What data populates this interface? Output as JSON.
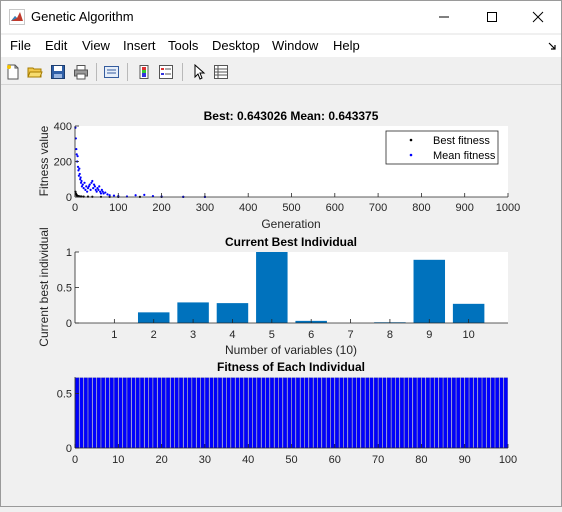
{
  "window": {
    "title": "Genetic Algorithm"
  },
  "menu": [
    "File",
    "Edit",
    "View",
    "Insert",
    "Tools",
    "Desktop",
    "Window",
    "Help"
  ],
  "colors": {
    "bar": "#0072bd",
    "best_marker": "#000000",
    "mean_marker": "#0000ff",
    "fitness_bar": "#0000ff"
  },
  "chart_data": [
    {
      "type": "scatter",
      "title": "Best: 0.643026 Mean: 0.643375",
      "xlabel": "Generation",
      "ylabel": "Fitness value",
      "xlim": [
        0,
        1000
      ],
      "ylim": [
        0,
        400
      ],
      "xticks": [
        0,
        100,
        200,
        300,
        400,
        500,
        600,
        700,
        800,
        900,
        1000
      ],
      "yticks": [
        0,
        200,
        400
      ],
      "legend": {
        "position": "top-right",
        "entries": [
          "Best fitness",
          "Mean fitness"
        ]
      },
      "series": [
        {
          "name": "Best fitness",
          "x": [
            1,
            2,
            3,
            4,
            5,
            6,
            8,
            10,
            12,
            15,
            20,
            30,
            40,
            60,
            80,
            100,
            150,
            200,
            250,
            300
          ],
          "y": [
            30,
            20,
            15,
            10,
            8,
            6,
            5,
            4,
            3,
            3,
            2,
            2,
            1.5,
            1.2,
            1,
            0.9,
            0.8,
            0.7,
            0.66,
            0.643
          ]
        },
        {
          "name": "Mean fitness",
          "x": [
            1,
            2,
            3,
            4,
            5,
            6,
            7,
            8,
            9,
            10,
            11,
            12,
            13,
            14,
            15,
            16,
            18,
            20,
            22,
            24,
            26,
            28,
            30,
            32,
            34,
            36,
            38,
            40,
            42,
            44,
            46,
            48,
            50,
            52,
            54,
            56,
            58,
            60,
            62,
            64,
            66,
            70,
            75,
            80,
            90,
            100,
            120,
            140,
            160,
            180,
            200,
            250,
            300
          ],
          "y": [
            390,
            330,
            270,
            240,
            200,
            230,
            170,
            150,
            120,
            160,
            130,
            100,
            110,
            80,
            90,
            60,
            70,
            50,
            80,
            40,
            60,
            30,
            50,
            60,
            70,
            40,
            80,
            90,
            50,
            70,
            60,
            40,
            30,
            50,
            40,
            60,
            30,
            20,
            40,
            30,
            20,
            25,
            15,
            10,
            8,
            5,
            3,
            10,
            12,
            5,
            3,
            1,
            0.643375
          ]
        }
      ]
    },
    {
      "type": "bar",
      "title": "Current Best Individual",
      "xlabel": "Number of variables (10)",
      "ylabel": "Current best individual",
      "ylim": [
        0,
        1
      ],
      "yticks": [
        0,
        0.5,
        1
      ],
      "categories": [
        "1",
        "2",
        "3",
        "4",
        "5",
        "6",
        "7",
        "8",
        "9",
        "10"
      ],
      "values": [
        0,
        0.15,
        0.29,
        0.28,
        1.0,
        0.03,
        0,
        0.01,
        0.89,
        0.27
      ]
    },
    {
      "type": "bar",
      "title": "Fitness of Each Individual",
      "xlim": [
        0,
        100
      ],
      "ylim": [
        0,
        0.65
      ],
      "xticks": [
        0,
        10,
        20,
        30,
        40,
        50,
        60,
        70,
        80,
        90,
        100
      ],
      "yticks": [
        0,
        0.5
      ],
      "values": [
        0.643,
        0.643,
        0.643,
        0.643,
        0.643,
        0.643,
        0.643,
        0.643,
        0.643,
        0.643,
        0.643,
        0.643,
        0.643,
        0.643,
        0.643,
        0.643,
        0.643,
        0.643,
        0.643,
        0.643,
        0.643,
        0.643,
        0.643,
        0.643,
        0.643,
        0.643,
        0.643,
        0.643,
        0.643,
        0.643,
        0.643,
        0.643,
        0.643,
        0.643,
        0.643,
        0.643,
        0.643,
        0.643,
        0.643,
        0.643,
        0.643,
        0.643,
        0.643,
        0.643,
        0.643,
        0.643,
        0.643,
        0.643,
        0.643,
        0.643,
        0.643,
        0.643,
        0.643,
        0.643,
        0.643,
        0.643,
        0.643,
        0.643,
        0.643,
        0.643,
        0.643,
        0.643,
        0.643,
        0.643,
        0.643,
        0.643,
        0.643,
        0.643,
        0.643,
        0.643,
        0.643,
        0.643,
        0.643,
        0.643,
        0.643,
        0.643,
        0.643,
        0.643,
        0.643,
        0.643,
        0.643,
        0.643,
        0.643,
        0.643,
        0.643,
        0.643,
        0.643,
        0.643,
        0.643,
        0.643,
        0.643,
        0.643,
        0.643,
        0.643,
        0.643,
        0.643,
        0.643,
        0.643,
        0.643,
        0.643
      ]
    }
  ]
}
